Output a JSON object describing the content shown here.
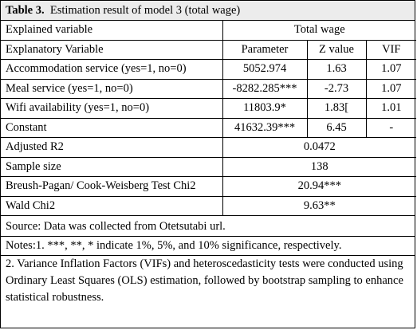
{
  "caption": {
    "label": "Table 3.",
    "text": "Estimation result of model 3 (total wage)"
  },
  "header": {
    "explained_label": "Explained variable",
    "explained_value": "Total wage",
    "explanatory_label": "Explanatory Variable",
    "col_parameter": "Parameter",
    "col_z": "Z value",
    "col_vif": "VIF"
  },
  "rows": [
    {
      "variable": "Accommodation service (yes=1, no=0)",
      "parameter": "5052.974",
      "z": "1.63",
      "vif": "1.07"
    },
    {
      "variable": "Meal service  (yes=1, no=0)",
      "parameter": "-8282.285***",
      "z": "-2.73",
      "vif": "1.07"
    },
    {
      "variable": "Wifi availability  (yes=1, no=0)",
      "parameter": "11803.9*",
      "z": "1.83[",
      "vif": "1.01"
    },
    {
      "variable": "Constant",
      "parameter": "41632.39***",
      "z": "6.45",
      "vif": "-"
    }
  ],
  "stats": [
    {
      "label": "Adjusted R2",
      "value": "0.0472"
    },
    {
      "label": "Sample size",
      "value": "138"
    },
    {
      "label": "Breush-Pagan/ Cook-Weisberg Test Chi2",
      "value": "20.94***"
    },
    {
      "label": "Wald Chi2",
      "value": "9.63**"
    }
  ],
  "notes": {
    "source": "Source: Data was collected from Otetsutabi url.",
    "note1": "Notes:1. ***, **, * indicate 1%, 5%, and 10% significance, respectively.",
    "note2": "2. Variance Inflation Factors (VIFs) and heteroscedasticity tests were conducted using Ordinary Least Squares (OLS) estimation, followed by bootstrap sampling to enhance statistical robustness."
  }
}
